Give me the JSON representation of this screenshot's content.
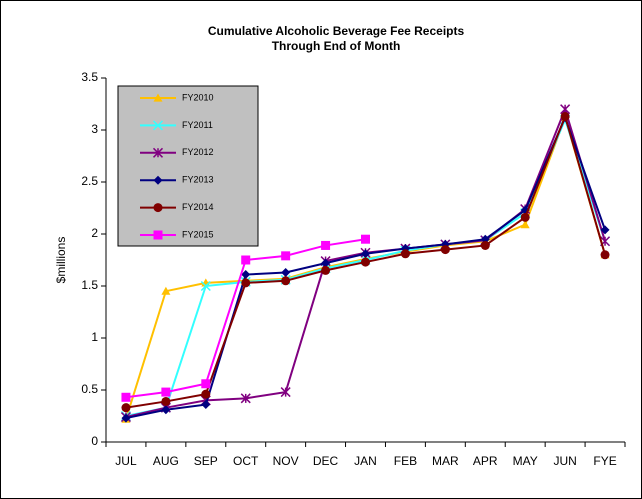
{
  "chart_data": {
    "type": "line",
    "title": [
      "Cumulative Alcoholic Beverage Fee Receipts",
      "Through End of Month"
    ],
    "y_label": "$millions",
    "categories": [
      "JUL",
      "AUG",
      "SEP",
      "OCT",
      "NOV",
      "DEC",
      "JAN",
      "FEB",
      "MAR",
      "APR",
      "MAY",
      "JUN",
      "FYE"
    ],
    "ylim": [
      0,
      3.5
    ],
    "yticks": [
      0,
      0.5,
      1,
      1.5,
      2,
      2.5,
      3,
      3.5
    ],
    "grid": false,
    "legend": "upper left",
    "series": [
      {
        "name": "FY2010",
        "color": "#ffc000",
        "marker": "triangle",
        "values": [
          0.22,
          1.45,
          1.53,
          1.55,
          1.57,
          1.68,
          1.76,
          1.83,
          1.89,
          1.93,
          2.09,
          3.12,
          1.8
        ]
      },
      {
        "name": "FY2011",
        "color": "#33ffff",
        "marker": "x",
        "values": [
          0.25,
          0.33,
          1.5,
          1.54,
          1.56,
          1.67,
          1.75,
          1.84,
          1.9,
          1.94,
          2.2,
          3.1,
          1.93
        ]
      },
      {
        "name": "FY2012",
        "color": "#800080",
        "marker": "star",
        "values": [
          0.24,
          0.33,
          0.4,
          0.42,
          0.48,
          1.74,
          1.82,
          1.86,
          1.9,
          1.94,
          2.24,
          3.2,
          1.93
        ]
      },
      {
        "name": "FY2013",
        "color": "#000080",
        "marker": "diamond",
        "values": [
          0.23,
          0.31,
          0.36,
          1.61,
          1.63,
          1.72,
          1.81,
          1.86,
          1.9,
          1.95,
          2.23,
          3.12,
          2.04
        ]
      },
      {
        "name": "FY2014",
        "color": "#800000",
        "marker": "circle",
        "values": [
          0.33,
          0.39,
          0.46,
          1.53,
          1.55,
          1.65,
          1.73,
          1.81,
          1.85,
          1.89,
          2.16,
          3.13,
          1.8
        ]
      },
      {
        "name": "FY2015",
        "color": "#ff00ff",
        "marker": "square",
        "values": [
          0.43,
          0.48,
          0.56,
          1.75,
          1.79,
          1.89,
          1.95,
          null,
          null,
          null,
          null,
          null,
          null
        ]
      }
    ]
  }
}
